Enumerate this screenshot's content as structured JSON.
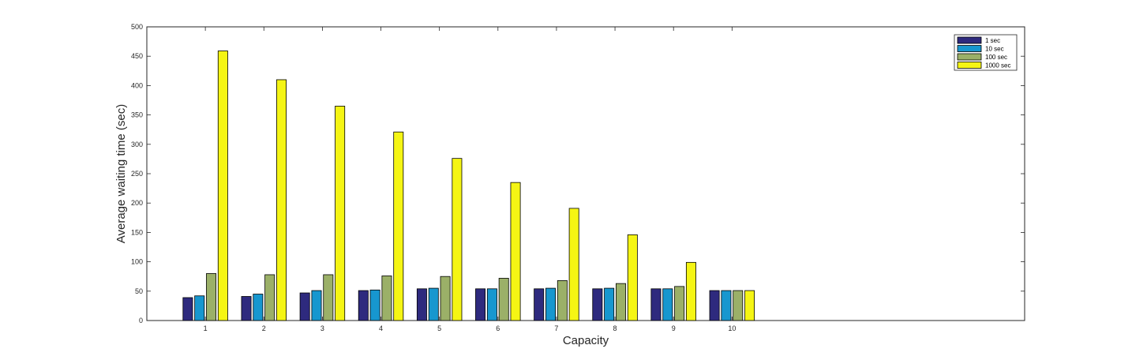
{
  "chart_data": {
    "type": "bar",
    "xlabel": "Capacity",
    "ylabel": "Average waiting time (sec)",
    "categories": [
      "1",
      "2",
      "3",
      "4",
      "5",
      "6",
      "7",
      "8",
      "9",
      "10"
    ],
    "xlim": [
      0,
      15
    ],
    "ylim": [
      0,
      500
    ],
    "yticks": [
      "0",
      "50",
      "100",
      "150",
      "200",
      "250",
      "300",
      "350",
      "400",
      "450",
      "500"
    ],
    "grid": false,
    "legend_position": "top-right",
    "series": [
      {
        "name": "1 sec",
        "color": "#2e2a7e",
        "values": [
          39,
          41,
          47,
          51,
          54,
          54,
          54,
          54,
          54,
          51
        ]
      },
      {
        "name": "10 sec",
        "color": "#1797cf",
        "values": [
          42,
          45,
          51,
          52,
          55,
          54,
          55,
          55,
          54,
          51
        ]
      },
      {
        "name": "100 sec",
        "color": "#9bb068",
        "values": [
          80,
          78,
          78,
          76,
          75,
          72,
          68,
          63,
          58,
          51
        ]
      },
      {
        "name": "1000 sec",
        "color": "#f5f514",
        "values": [
          459,
          410,
          365,
          321,
          276,
          235,
          191,
          146,
          99,
          51
        ]
      }
    ]
  }
}
